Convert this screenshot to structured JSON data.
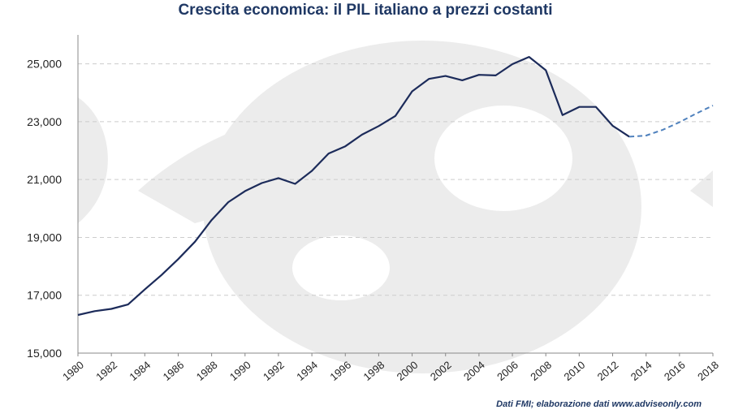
{
  "title": "Crescita economica: il PIL italiano a prezzi costanti",
  "source": "Dati FMI; elaborazione dati  www.adviseonly.com",
  "colors": {
    "actual": "#1c2b5a",
    "forecast": "#4f81bd",
    "grid": "#cccccc",
    "watermark": "#ececec",
    "title": "#1f3864"
  },
  "chart_data": {
    "type": "line",
    "title": "Crescita economica: il PIL italiano a prezzi costanti",
    "xlabel": "",
    "ylabel": "",
    "xlim": [
      1980,
      2018
    ],
    "ylim": [
      15000,
      26000
    ],
    "grid": true,
    "y_ticks": [
      {
        "value": 15000,
        "label": "15,000"
      },
      {
        "value": 17000,
        "label": "17,000"
      },
      {
        "value": 19000,
        "label": "19,000"
      },
      {
        "value": 21000,
        "label": "21,000"
      },
      {
        "value": 23000,
        "label": "23,000"
      },
      {
        "value": 25000,
        "label": "25,000"
      }
    ],
    "x_ticks": [
      "1980",
      "1982",
      "1984",
      "1986",
      "1988",
      "1990",
      "1992",
      "1994",
      "1996",
      "1998",
      "2000",
      "2002",
      "2004",
      "2006",
      "2008",
      "2010",
      "2012",
      "2014",
      "2016",
      "2018"
    ],
    "series": [
      {
        "style": "solid",
        "x": [
          1980,
          1981,
          1982,
          1983,
          1984,
          1985,
          1986,
          1987,
          1988,
          1989,
          1990,
          1991,
          1992,
          1993,
          1994,
          1995,
          1996,
          1997,
          1998,
          1999,
          2000,
          2001,
          2002,
          2003,
          2004,
          2005,
          2006,
          2007,
          2008,
          2009,
          2010,
          2011,
          2012,
          2013
        ],
        "y": [
          16320,
          16450,
          16530,
          16680,
          17200,
          17700,
          18250,
          18850,
          19600,
          20220,
          20600,
          20880,
          21050,
          20850,
          21300,
          21900,
          22150,
          22550,
          22850,
          23200,
          24050,
          24480,
          24580,
          24430,
          24620,
          24600,
          24990,
          25240,
          24780,
          23230,
          23510,
          23510,
          22860,
          22480
        ]
      },
      {
        "style": "dashed",
        "x": [
          2013,
          2014,
          2015,
          2016,
          2017,
          2018
        ],
        "y": [
          22480,
          22520,
          22720,
          22980,
          23280,
          23560
        ]
      }
    ]
  }
}
